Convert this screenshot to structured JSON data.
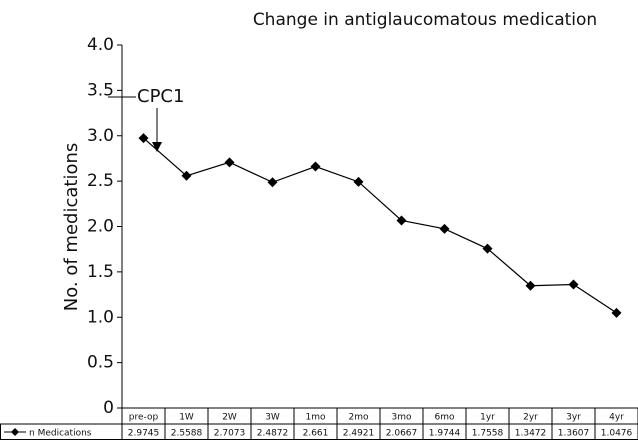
{
  "chart_data": {
    "type": "line",
    "title": "Change in antiglaucomatous medication",
    "y_label": "No. of medications",
    "annotation": "CPC1",
    "categories": [
      "pre-op",
      "1W",
      "2W",
      "3W",
      "1mo",
      "2mo",
      "3mo",
      "6mo",
      "1yr",
      "2yr",
      "3yr",
      "4yr"
    ],
    "series": [
      {
        "name": "n Medications",
        "color": "#000000",
        "values": [
          2.9745,
          2.5588,
          2.7073,
          2.4872,
          2.661,
          2.4921,
          2.0667,
          1.9744,
          1.7558,
          1.3472,
          1.3607,
          1.0476
        ]
      }
    ],
    "ylim": [
      0,
      4
    ],
    "yticks": [
      0,
      0.5,
      {
        "value": 1,
        "label": "1.0"
      },
      1.5,
      {
        "value": 2,
        "label": "2.0"
      },
      2.5,
      {
        "value": 3,
        "label": "3.0"
      },
      3.5,
      {
        "value": 4,
        "label": "4.0"
      }
    ]
  }
}
